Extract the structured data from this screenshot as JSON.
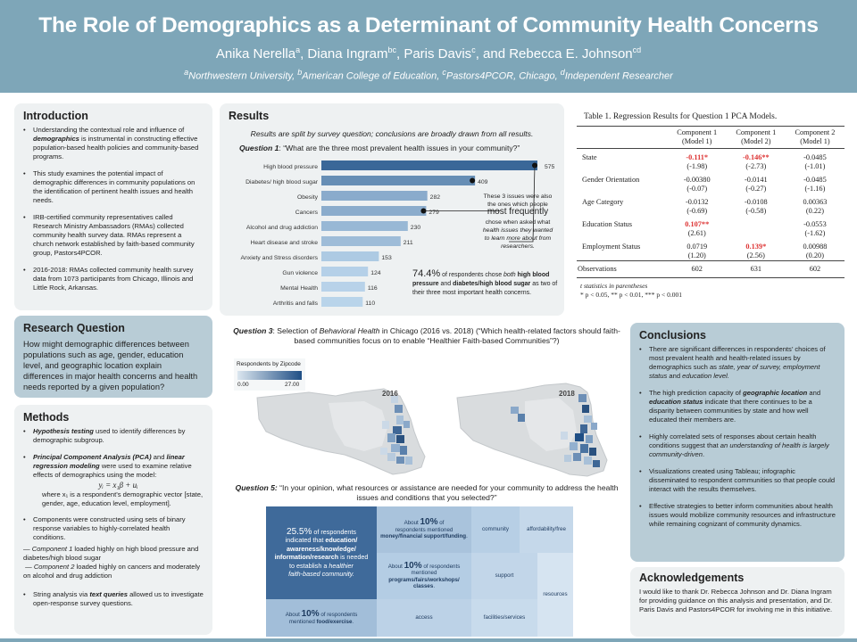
{
  "header": {
    "title": "The Role of Demographics as a Determinant of Community Health Concerns",
    "authors": [
      {
        "name": "Anika Nerella",
        "sup": "a"
      },
      {
        "name": "Diana Ingram",
        "sup": "bc"
      },
      {
        "name": "Paris Davis",
        "sup": "c"
      },
      {
        "name": "Rebecca E. Johnson",
        "sup": "cd"
      }
    ],
    "affiliations": [
      {
        "sup": "a",
        "name": "Northwestern University"
      },
      {
        "sup": "b",
        "name": "American College of Education"
      },
      {
        "sup": "c",
        "name": "Pastors4PCOR, Chicago"
      },
      {
        "sup": "d",
        "name": "Independent Researcher"
      }
    ]
  },
  "intro": {
    "title": "Introduction",
    "b1_pre": "Understanding the contextual role and influence of ",
    "b1_em": "demographics",
    "b1_post": " is instrumental in constructing effective population-based health policies and community-based programs.",
    "b2": "This study examines the potential impact of demographic differences in community populations on the identification of pertinent health issues and health needs.",
    "b3": "IRB-certified community representatives called Research Ministry Ambassadors (RMAs) collected community health survey data. RMAs represent a church network established by faith-based community group, Pastors4PCOR.",
    "b4": "2016-2018: RMAs collected community health survey data from 1073 participants from Chicago, Illinois and Little Rock, Arkansas."
  },
  "rq": {
    "title": "Research Question",
    "text": "How might demographic differences between populations such as age, gender, education level, and geographic location explain differences in major health concerns and health needs reported by a given population?"
  },
  "methods": {
    "title": "Methods",
    "m1_em": "Hypothesis testing",
    "m1_post": " used to identify differences by demographic subgroup.",
    "m2_em1": "Principal Component Analysis (PCA)",
    "m2_mid": " and ",
    "m2_em2": "linear regression modeling",
    "m2_post": " were used to examine relative effects of demographics using the model:",
    "equation": "yᵢ = x₁β + uᵢ",
    "where_line": "where x₁ is a respondent’s demographic vector [state, gender, age, education level, employment].",
    "m3": "Components were constructed using sets of binary response variables to highly-correlated health conditions.",
    "c1_em": "Component 1",
    "c1_post": " loaded highly on high blood pressure and diabetes/high blood sugar",
    "c2_em": "Component 2",
    "c2_post": " loaded highly on cancers and moderately on alcohol and drug addiction",
    "m4_pre": "String analysis via ",
    "m4_em": "text queries",
    "m4_post": " allowed us to investigate open-response survey questions."
  },
  "results": {
    "title": "Results",
    "note": "Results are split by survey question; conclusions are broadly drawn from all results.",
    "q1_label": "Question 1",
    "q1_text": ": “What are the three most prevalent health issues in your community?”",
    "callout_line1": "These 3 issues were also",
    "callout_line2": "the ones which people",
    "callout_big": "most frequently",
    "callout_line4": "chose when asked what",
    "callout_line5": "health issues they wanted",
    "callout_line6": "to learn more about from",
    "callout_line7": "researchers.",
    "stat_pct": "74.4%",
    "stat_text1": " of respondents chose ",
    "stat_em": "both",
    "stat_text2": " high blood",
    "stat_line2_b1": "pressure",
    "stat_line2_mid": " and ",
    "stat_line2_b2": "diabetes/high blood sugar",
    "stat_line2_end": " as two of",
    "stat_line3": "their three most important health concerns."
  },
  "chart_data": {
    "type": "bar",
    "categories": [
      "High blood pressure",
      "Diabetes/ high blood sugar",
      "Obesity",
      "Cancers",
      "Alcohol and drug addiction",
      "Heart disease and stroke",
      "Anxiety and Stress disorders",
      "Gun violence",
      "Mental Health",
      "Arthritis and falls"
    ],
    "values": [
      575,
      409,
      282,
      279,
      230,
      211,
      153,
      124,
      116,
      110
    ],
    "orientation": "horizontal",
    "xlim": [
      0,
      575
    ]
  },
  "table": {
    "title": "Table 1.  Regression Results for Question 1 PCA Models.",
    "headers": [
      {
        "l1": "",
        "l2": ""
      },
      {
        "l1": "Component 1",
        "l2": "(Model 1)"
      },
      {
        "l1": "Component 1",
        "l2": "(Model 2)"
      },
      {
        "l1": "Component 2",
        "l2": "(Model 1)"
      }
    ],
    "rows": [
      {
        "label": "State",
        "cells": [
          {
            "v": "-0.111*",
            "t": "(-1.98)",
            "sig": true
          },
          {
            "v": "-0.146**",
            "t": "(-2.73)",
            "sig": true
          },
          {
            "v": "-0.0485",
            "t": "(-1.01)",
            "sig": false
          }
        ]
      },
      {
        "label": "Gender Orientation",
        "cells": [
          {
            "v": "-0.00380",
            "t": "(-0.07)",
            "sig": false
          },
          {
            "v": "-0.0141",
            "t": "(-0.27)",
            "sig": false
          },
          {
            "v": "-0.0485",
            "t": "(-1.16)",
            "sig": false
          }
        ]
      },
      {
        "label": "Age Category",
        "cells": [
          {
            "v": "-0.0132",
            "t": "(-0.69)",
            "sig": false
          },
          {
            "v": "-0.0108",
            "t": "(-0.58)",
            "sig": false
          },
          {
            "v": "0.00363",
            "t": "(0.22)",
            "sig": false
          }
        ]
      },
      {
        "label": "Education Status",
        "cells": [
          {
            "v": "0.107**",
            "t": "(2.61)",
            "sig": true
          },
          {
            "v": "",
            "t": "",
            "sig": false
          },
          {
            "v": "-0.0553",
            "t": "(-1.62)",
            "sig": false
          }
        ]
      },
      {
        "label": "Employment Status",
        "cells": [
          {
            "v": "0.0719",
            "t": "(1.20)",
            "sig": false
          },
          {
            "v": "0.139*",
            "t": "(2.56)",
            "sig": true
          },
          {
            "v": "0.00988",
            "t": "(0.20)",
            "sig": false
          }
        ]
      }
    ],
    "obs": {
      "label": "Observations",
      "values": [
        "602",
        "631",
        "602"
      ]
    },
    "foot1": "t statistics in parentheses",
    "foot2": "* p < 0.05, ** p < 0.01, *** p < 0.001"
  },
  "q3": {
    "label": "Question 3",
    "text_pre": ": Selection of ",
    "text_em": "Behavioral Health",
    "text_post": " in Chicago (2016 vs. 2018) (“Which health-related factors should faith-based communities focus on to enable “Healthier Faith-based Communities”?)",
    "legend_title": "Respondents by Zipcode",
    "legend_min": "0.00",
    "legend_max": "27.00",
    "map_left_year": "2016",
    "map_right_year": "2018"
  },
  "q5": {
    "label": "Question 5:",
    "text": " “In your opinion, what resources or assistance are needed for your community to address the health issues and conditions that you selected?”",
    "tm_main_pct": "25.5%",
    "tm_main_l1": "of respondents",
    "tm_main_l2": "indicated that",
    "tm_main_b1": "education/",
    "tm_main_b2": "awareness/knowledge/",
    "tm_main_b3": "information/research",
    "tm_main_l3": "is needed",
    "tm_main_l4": "to establish a",
    "tm_main_em1": "healthier",
    "tm_main_em2": "faith-based community.",
    "tm_money_pre": "About",
    "tm_money_pct": "10%",
    "tm_money_of": "of",
    "tm_money_l2": "respondents mentioned",
    "tm_money_b": "money/financial support/funding",
    "tm_community": "community",
    "tm_afford": "affordability/free",
    "tm_prog_pre": "About",
    "tm_prog_pct": "10%",
    "tm_prog_l2": "of respondents mentioned",
    "tm_prog_b1": "programs/fairs/workshops/",
    "tm_prog_b2": "classes",
    "tm_support": "support",
    "tm_resources": "resources",
    "tm_food_pre": "About",
    "tm_food_pct": "10%",
    "tm_food_post": "of respondents",
    "tm_food_l2": "mentioned",
    "tm_food_b": "food/exercise",
    "tm_access": "access",
    "tm_facilities": "facilities/services"
  },
  "conclusions": {
    "title": "Conclusions",
    "c1_pre": "There are significant differences in respondents’ choices of most prevalent health and health-related issues by demographics such as ",
    "c1_em": "state, year of survey, employment status",
    "c1_mid": " and ",
    "c1_em2": "education level.",
    "c2_pre": "The high prediction capacity of ",
    "c2_em1": "geographic location",
    "c2_mid": " and ",
    "c2_em2": "education status",
    "c2_post": " indicate that there continues to be a disparity between communities by state and how well educated their members are.",
    "c3_pre": "Highly correlated sets of responses about certain health conditions suggest that ",
    "c3_em": "an understanding of health is largely community-driven",
    "c3_post": ".",
    "c4": "Visualizations created using Tableau; infographic disseminated to respondent communities so that people could interact with the results themselves.",
    "c5": "Effective strategies to better inform communities about health issues would mobilize community resources and infrastructure while remaining cognizant of community dynamics."
  },
  "ack": {
    "title": "Acknowledgements",
    "text": "I would like to thank Dr. Rebecca Johnson and Dr. Diana Ingram for providing guidance on this analysis and presentation, and Dr. Paris Davis and Pastors4PCOR for involving me in this initiative."
  },
  "colors": {
    "header": "#7ea6b8",
    "bar_dark": "#3d6a9c",
    "bar_light": "#b9d3ea",
    "sig_red": "#dd3333"
  }
}
